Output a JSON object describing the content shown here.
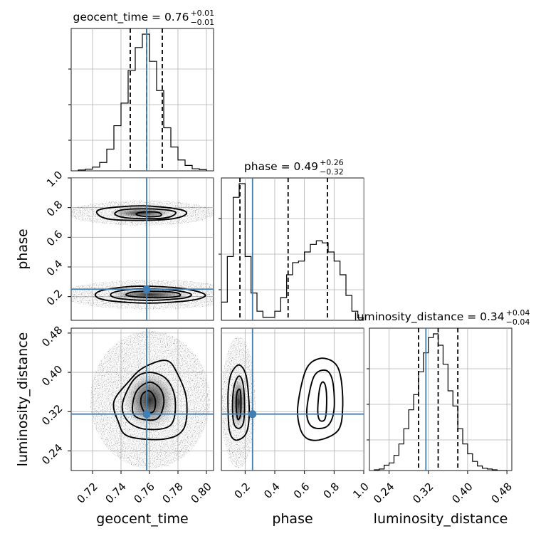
{
  "chart_data": {
    "type": "corner",
    "parameters": [
      "geocent_time",
      "phase",
      "luminosity_distance"
    ],
    "axis_labels": [
      "geocent_time",
      "phase",
      "luminosity_distance"
    ],
    "ranges": {
      "geocent_time": [
        0.705,
        0.805
      ],
      "phase": [
        0.04,
        1.0
      ],
      "luminosity_distance": [
        0.2,
        0.49
      ]
    },
    "ticks": {
      "geocent_time": [
        "0.72",
        "0.74",
        "0.76",
        "0.78",
        "0.80"
      ],
      "phase": [
        "0.2",
        "0.4",
        "0.6",
        "0.8",
        "1.0"
      ],
      "luminosity_distance": [
        "0.24",
        "0.32",
        "0.40",
        "0.48"
      ]
    },
    "truths": {
      "geocent_time": 0.758,
      "phase": 0.25,
      "luminosity_distance": 0.315
    },
    "titles": [
      {
        "param": "geocent_time",
        "text": "geocent_time = 0.76",
        "plus": "+0.01",
        "minus": "−0.01"
      },
      {
        "param": "phase",
        "text": "phase = 0.49",
        "plus": "+0.26",
        "minus": "−0.32"
      },
      {
        "param": "luminosity_distance",
        "text": "luminosity_distance = 0.34",
        "plus": "+0.04",
        "minus": "−0.04"
      }
    ],
    "quantiles": {
      "geocent_time": [
        0.7465,
        0.758,
        0.769
      ],
      "phase": [
        0.165,
        0.49,
        0.755
      ],
      "luminosity_distance": [
        0.3,
        0.34,
        0.38
      ]
    },
    "histograms": {
      "geocent_time": {
        "bin_edges": [
          0.71,
          0.715,
          0.72,
          0.725,
          0.73,
          0.735,
          0.74,
          0.745,
          0.75,
          0.755,
          0.76,
          0.765,
          0.77,
          0.775,
          0.78,
          0.785,
          0.79,
          0.795,
          0.8
        ],
        "counts": [
          2,
          4,
          9,
          20,
          52,
          108,
          162,
          240,
          295,
          327,
          262,
          192,
          103,
          57,
          26,
          13,
          5,
          3
        ]
      },
      "phase": {
        "bin_edges": [
          0.04,
          0.08,
          0.12,
          0.16,
          0.2,
          0.24,
          0.28,
          0.32,
          0.36,
          0.4,
          0.44,
          0.48,
          0.52,
          0.56,
          0.6,
          0.64,
          0.68,
          0.72,
          0.76,
          0.8,
          0.84,
          0.88,
          0.92,
          0.96,
          1.0
        ],
        "counts": [
          60,
          210,
          405,
          450,
          210,
          90,
          30,
          10,
          10,
          30,
          75,
          150,
          190,
          195,
          225,
          250,
          262,
          255,
          225,
          195,
          150,
          82,
          30,
          8
        ]
      },
      "luminosity_distance": {
        "bin_edges": [
          0.21,
          0.22,
          0.23,
          0.24,
          0.25,
          0.26,
          0.27,
          0.28,
          0.29,
          0.3,
          0.31,
          0.32,
          0.33,
          0.34,
          0.35,
          0.36,
          0.37,
          0.38,
          0.39,
          0.4,
          0.41,
          0.42,
          0.43,
          0.44,
          0.45,
          0.46,
          0.47,
          0.48
        ],
        "counts": [
          1,
          2,
          7,
          10,
          20,
          35,
          55,
          80,
          100,
          130,
          155,
          175,
          180,
          165,
          140,
          105,
          85,
          55,
          35,
          22,
          12,
          6,
          3,
          2,
          1,
          0,
          0
        ]
      }
    },
    "pairs": [
      {
        "x": "geocent_time",
        "y": "phase",
        "contour_levels": [
          [
            [
              0.723,
              0.765
            ],
            [
              0.732,
              0.722
            ],
            [
              0.76,
              0.715
            ],
            [
              0.778,
              0.728
            ],
            [
              0.786,
              0.76
            ],
            [
              0.78,
              0.79
            ],
            [
              0.755,
              0.812
            ],
            [
              0.729,
              0.795
            ]
          ],
          [
            [
              0.736,
              0.752
            ],
            [
              0.745,
              0.73
            ],
            [
              0.765,
              0.726
            ],
            [
              0.775,
              0.74
            ],
            [
              0.778,
              0.772
            ],
            [
              0.765,
              0.79
            ],
            [
              0.746,
              0.79
            ],
            [
              0.738,
              0.778
            ]
          ],
          [
            [
              0.752,
              0.748
            ],
            [
              0.76,
              0.738
            ],
            [
              0.768,
              0.746
            ],
            [
              0.766,
              0.768
            ],
            [
              0.756,
              0.771
            ],
            [
              0.751,
              0.76
            ]
          ],
          [
            [
              0.722,
              0.206
            ],
            [
              0.732,
              0.172
            ],
            [
              0.76,
              0.156
            ],
            [
              0.79,
              0.176
            ],
            [
              0.799,
              0.214
            ],
            [
              0.782,
              0.256
            ],
            [
              0.752,
              0.27
            ],
            [
              0.728,
              0.245
            ]
          ],
          [
            [
              0.733,
              0.205
            ],
            [
              0.742,
              0.183
            ],
            [
              0.762,
              0.175
            ],
            [
              0.784,
              0.19
            ],
            [
              0.789,
              0.218
            ],
            [
              0.775,
              0.245
            ],
            [
              0.752,
              0.252
            ],
            [
              0.736,
              0.232
            ]
          ],
          [
            [
              0.745,
              0.205
            ],
            [
              0.755,
              0.195
            ],
            [
              0.77,
              0.193
            ],
            [
              0.781,
              0.204
            ],
            [
              0.779,
              0.226
            ],
            [
              0.765,
              0.236
            ],
            [
              0.75,
              0.233
            ],
            [
              0.744,
              0.218
            ]
          ]
        ]
      },
      {
        "x": "geocent_time",
        "y": "luminosity_distance",
        "contour_levels": [
          [
            [
              0.735,
              0.34
            ],
            [
              0.738,
              0.3
            ],
            [
              0.745,
              0.27
            ],
            [
              0.77,
              0.264
            ],
            [
              0.784,
              0.285
            ],
            [
              0.786,
              0.345
            ],
            [
              0.78,
              0.395
            ],
            [
              0.772,
              0.424
            ],
            [
              0.756,
              0.41
            ],
            [
              0.745,
              0.38
            ]
          ],
          [
            [
              0.741,
              0.335
            ],
            [
              0.745,
              0.3
            ],
            [
              0.758,
              0.284
            ],
            [
              0.775,
              0.293
            ],
            [
              0.778,
              0.345
            ],
            [
              0.772,
              0.386
            ],
            [
              0.76,
              0.4
            ],
            [
              0.749,
              0.385
            ]
          ],
          [
            [
              0.748,
              0.325
            ],
            [
              0.752,
              0.307
            ],
            [
              0.765,
              0.305
            ],
            [
              0.77,
              0.335
            ],
            [
              0.768,
              0.365
            ],
            [
              0.76,
              0.38
            ],
            [
              0.751,
              0.362
            ]
          ],
          [
            [
              0.754,
              0.336
            ],
            [
              0.757,
              0.318
            ],
            [
              0.763,
              0.321
            ],
            [
              0.764,
              0.345
            ],
            [
              0.76,
              0.362
            ],
            [
              0.755,
              0.355
            ]
          ]
        ]
      },
      {
        "x": "phase",
        "y": "luminosity_distance",
        "contour_levels": [
          [
            [
              0.085,
              0.325
            ],
            [
              0.095,
              0.28
            ],
            [
              0.135,
              0.262
            ],
            [
              0.2,
              0.272
            ],
            [
              0.225,
              0.3
            ],
            [
              0.225,
              0.345
            ],
            [
              0.205,
              0.395
            ],
            [
              0.16,
              0.415
            ],
            [
              0.11,
              0.4
            ],
            [
              0.088,
              0.37
            ]
          ],
          [
            [
              0.115,
              0.33
            ],
            [
              0.125,
              0.295
            ],
            [
              0.16,
              0.286
            ],
            [
              0.19,
              0.3
            ],
            [
              0.195,
              0.345
            ],
            [
              0.182,
              0.382
            ],
            [
              0.155,
              0.392
            ],
            [
              0.125,
              0.37
            ]
          ],
          [
            [
              0.14,
              0.33
            ],
            [
              0.15,
              0.305
            ],
            [
              0.168,
              0.312
            ],
            [
              0.172,
              0.345
            ],
            [
              0.165,
              0.365
            ],
            [
              0.145,
              0.358
            ]
          ],
          [
            [
              0.555,
              0.33
            ],
            [
              0.572,
              0.285
            ],
            [
              0.625,
              0.264
            ],
            [
              0.725,
              0.264
            ],
            [
              0.832,
              0.284
            ],
            [
              0.858,
              0.33
            ],
            [
              0.845,
              0.39
            ],
            [
              0.8,
              0.42
            ],
            [
              0.7,
              0.428
            ],
            [
              0.61,
              0.405
            ]
          ],
          [
            [
              0.618,
              0.33
            ],
            [
              0.628,
              0.298
            ],
            [
              0.68,
              0.286
            ],
            [
              0.76,
              0.292
            ],
            [
              0.8,
              0.325
            ],
            [
              0.79,
              0.382
            ],
            [
              0.745,
              0.404
            ],
            [
              0.665,
              0.392
            ]
          ],
          [
            [
              0.69,
              0.32
            ],
            [
              0.705,
              0.302
            ],
            [
              0.74,
              0.306
            ],
            [
              0.75,
              0.34
            ],
            [
              0.742,
              0.372
            ],
            [
              0.72,
              0.38
            ],
            [
              0.7,
              0.362
            ]
          ]
        ]
      }
    ]
  }
}
